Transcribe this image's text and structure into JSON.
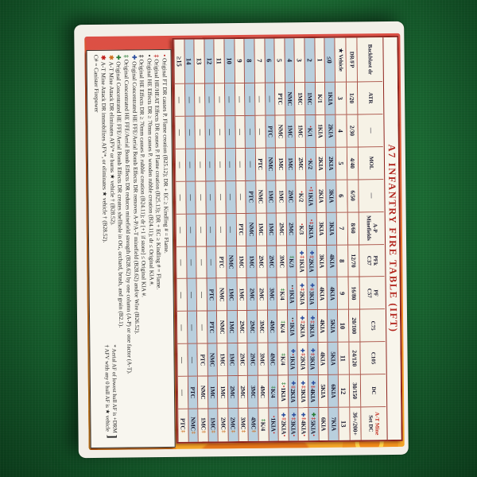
{
  "title": "A7 INFANTRY FIRE TABLE (IFT)",
  "corner": {
    "backblast": "Backblast dr",
    "drfp": "DR/FP",
    "vehicle": "★ Vehicle"
  },
  "dr_labels": [
    "≤0",
    "1",
    "2",
    "3",
    "4",
    "5",
    "6",
    "7",
    "8",
    "9",
    "10",
    "11",
    "12",
    "13",
    "14",
    "≥15"
  ],
  "sym_colors": {
    "r": "#c01f1c",
    "b": "#2d4e9e",
    "g": "#267a33",
    "k": "#222222",
    "o": "#cc6d1d"
  },
  "accent_colors": {
    "title_red": "#b3271f",
    "cell_blue": "#b9cfdd",
    "cell_cream": "#f6f2e6",
    "grid_line": "#a84f44",
    "felt_green": "#1b6a33"
  },
  "columns": [
    {
      "weapon": [
        "ATR"
      ],
      "frac": "1/20",
      "star": "3",
      "cells": [
        "1KIA",
        "K/1",
        "1MC",
        "1MC",
        "NMC",
        "PTC",
        "—",
        "—",
        "—",
        "—",
        "—",
        "—",
        "—",
        "—",
        "—",
        "—"
      ]
    },
    {
      "weapon": [
        "—"
      ],
      "frac": "2/30",
      "star": "4",
      "cells": [
        "2KIA",
        "1KIA",
        {
          "p": [
            "r•"
          ],
          "t": "K/1"
        },
        "1MC",
        "1MC",
        "NMC",
        "PTC",
        "—",
        "—",
        "—",
        "—",
        "—",
        "—",
        "—",
        "—",
        "—"
      ]
    },
    {
      "weapon": [
        "MOL"
      ],
      "frac": "4/40",
      "star": "5",
      "cells": [
        "2KIA",
        "2KIA",
        {
          "p": [
            "r•"
          ],
          "t": "K/2"
        },
        "2MC",
        "1MC",
        "1MC",
        "NMC",
        "PTC",
        "—",
        "—",
        "—",
        "—",
        "—",
        "—",
        "—",
        "—"
      ]
    },
    {
      "weapon": [
        "—"
      ],
      "frac": "6/50",
      "star": "6",
      "cells": [
        "3KIA",
        "2KIA",
        {
          "p": [
            "r•",
            "r‡"
          ],
          "t": "1KIA"
        },
        {
          "p": [
            "r•"
          ],
          "t": "K/2"
        },
        "2MC",
        "1MC",
        "1MC",
        "NMC",
        "PTC",
        "—",
        "—",
        "—",
        "—",
        "—",
        "—",
        "—"
      ]
    },
    {
      "weapon": [
        "A-P",
        "Minefields"
      ],
      "frac": "8/60",
      "star": "7",
      "cells": [
        "3KIA",
        "3KIA",
        {
          "p": [
            "r•",
            "r‡"
          ],
          "t": "2KIA"
        },
        {
          "p": [
            "r•"
          ],
          "t": "K/3"
        },
        "2MC",
        "2MC",
        "1MC",
        "1MC",
        "NMC",
        "PTC",
        "—",
        "—",
        "—",
        "—",
        "—",
        "—"
      ]
    },
    {
      "weapon": [
        "PFk",
        "C37"
      ],
      "frac": "12/70",
      "star": "8",
      "cells": [
        "4KIA",
        "3KIA",
        {
          "p": [
            "b✚",
            "r‡"
          ],
          "t": "2KIA"
        },
        {
          "p": [
            "b✚",
            "r‡"
          ],
          "t": "1KIA"
        },
        {
          "p": [
            "g‡"
          ],
          "t": "K/3"
        },
        "3MC",
        "2MC",
        "2MC",
        "1MC",
        "1MC",
        "NMC",
        "PTC",
        "—",
        "—",
        "—",
        "—"
      ]
    },
    {
      "weapon": [
        "PF",
        "C57"
      ],
      "frac": "16/80",
      "star": "9",
      "cells": [
        "4KIA",
        "4KIA",
        {
          "p": [
            "b✚",
            "r‡"
          ],
          "t": "3KIA"
        },
        {
          "p": [
            "b✚",
            "r‡"
          ],
          "t": "2KIA"
        },
        {
          "p": [
            "k•",
            "r•"
          ],
          "t": "1KIA"
        },
        {
          "p": [
            "g‡"
          ],
          "t": "K/4"
        },
        "3MC",
        "2MC",
        "2MC",
        "1MC",
        "1MC",
        "NMC",
        "PTC",
        "—",
        "—",
        "—"
      ]
    },
    {
      "weapon": [
        "C75"
      ],
      "frac": "20/100",
      "star": "10",
      "cells": [
        "5KIA",
        "4KIA",
        {
          "p": [
            "b✚",
            "r‡"
          ],
          "t": "3KIA"
        },
        {
          "p": [
            "b✚",
            "r‡"
          ],
          "t": "2KIA"
        },
        {
          "p": [
            "k•",
            "r•"
          ],
          "t": "1KIA"
        },
        {
          "p": [
            "g‡"
          ],
          "t": "K/4"
        },
        "4MC",
        "3MC",
        "2MC",
        "2MC",
        "1MC",
        "NMC",
        "PTC",
        "—",
        "—",
        "—"
      ]
    },
    {
      "weapon": [
        "C105"
      ],
      "frac": "24/120",
      "star": "11",
      "cells": [
        "5KIA",
        "4KIA",
        {
          "p": [
            "b✚",
            "r‡"
          ],
          "t": "3KIA"
        },
        {
          "p": [
            "b✚",
            "r‡"
          ],
          "t": "2KIA"
        },
        {
          "p": [
            "b✚",
            "r•"
          ],
          "t": "1KIA"
        },
        {
          "p": [
            "g‡"
          ],
          "t": "K/4"
        },
        "4MC",
        "3MC",
        "2MC",
        "2MC",
        "1MC",
        "1MC",
        "NMC",
        "PTC",
        "—",
        "—"
      ]
    },
    {
      "weapon": [
        "DC"
      ],
      "frac": "30/150",
      "star": "12",
      "cells": [
        "6KIA",
        "5KIA",
        {
          "p": [
            "b✚",
            "r‡"
          ],
          "t": "4KIA"
        },
        {
          "p": [
            "b✚",
            "r‡"
          ],
          "t": "3KIA"
        },
        {
          "p": [
            "b✚",
            "r‡"
          ],
          "t": "2KIA"
        },
        {
          "p": [
            "g‡",
            "r•"
          ],
          "t": "1KIA"
        },
        {
          "p": [
            "g‡"
          ],
          "t": "K/4"
        },
        "4MC",
        "3MC",
        "2MC",
        "2MC",
        "1MC",
        "1MC",
        "NMC",
        "PTC",
        "—"
      ]
    },
    {
      "weapon": [
        "A-T Mine",
        "Set DC"
      ],
      "weapon_red_idx": 0,
      "frac": "36+/200+",
      "star": "13",
      "cells": [
        "7KIA",
        "6KIA",
        {
          "p": [
            "g✚",
            "r‡"
          ],
          "t": "5KIA",
          "s": [
            "r•"
          ]
        },
        {
          "p": [
            "b✚",
            "r‡"
          ],
          "t": "4KIA",
          "s": [
            "r•"
          ]
        },
        {
          "p": [
            "b✚",
            "r‡"
          ],
          "t": "3KIA",
          "s": [
            "r•"
          ]
        },
        {
          "p": [
            "b✚",
            "r‡"
          ],
          "t": "2KIA",
          "s": [
            "r•"
          ]
        },
        {
          "p": [
            "r•"
          ],
          "t": "1KIA",
          "s": [
            "r•"
          ]
        },
        {
          "p": [
            "g‡"
          ],
          "t": "K/4"
        },
        {
          "t": "4MC",
          "s": [
            "o‡"
          ]
        },
        {
          "t": "3MC",
          "s": [
            "o‡"
          ]
        },
        {
          "t": "2MC",
          "s": [
            "o‡"
          ]
        },
        {
          "t": "2MC",
          "s": [
            "o‡"
          ]
        },
        {
          "t": "1MC",
          "s": [
            "o‡"
          ]
        },
        {
          "t": "1MC",
          "s": [
            "o‡"
          ]
        },
        {
          "t": "NMC",
          "s": [
            "o‡"
          ]
        },
        {
          "t": "PTC",
          "s": [
            "o‡"
          ]
        }
      ]
    }
  ],
  "footnotes": [
    {
      "sym": "r•",
      "text": "Original FT DR causes P. Flame creation (B25.12); DR + EC ≥ Kindling # = Flame."
    },
    {
      "sym": "r‡",
      "text": "Original HE/HEAT Effects DR causes P. Flame creation (B25.13); DR + EC ≥ Kindling # = Flame."
    },
    {
      "sym": "k•",
      "text": "Original HE Effects DR ≥ 70mm causes P. wooden rubble creation (B24.11); dr ≤ Original KIA #."
    },
    {
      "sym": "k‡",
      "text": "Original HE Effects DR ≥ 70mm causes P. rubble creation (B24.11); dr [+1 if stone] ≤ Original KIA #."
    },
    {
      "sym": "b✚",
      "text": "Original Concentrated HE FFE/Aerial Bomb Effects DR removes A-P/A-T minefield (B28.62) and/or Wire (B26.52)."
    },
    {
      "sym": "g‡",
      "text": "Original Concentrated HE FFE/Aerial Bomb Effects DR reduces minefield strength (B28.62) by one column (A-P) or one factor (A-T)."
    },
    {
      "sym": "g✚",
      "text": "Original Concentrated HE FFE/Aerial Bomb Effects DR creates shellhole in OG, orchard, brush, and grain (B2.1)."
    },
    {
      "sym": "o✱",
      "text": "A-T Mine Attack DR eliminates AFV* or burns ★ vehicle † (B28.52)."
    },
    {
      "sym": "r✱",
      "text": "A-T Mine Attack DR immobilizes AFV*, or eliminates ★ vehicle † (B28.52)."
    }
  ],
  "sub_notes": [
    "* Aerial AF of lowest hull AF is +DRM",
    "† AFV with any 0 hull AF is ★ vehicle"
  ],
  "last_note": "C# = Canister Firepower"
}
